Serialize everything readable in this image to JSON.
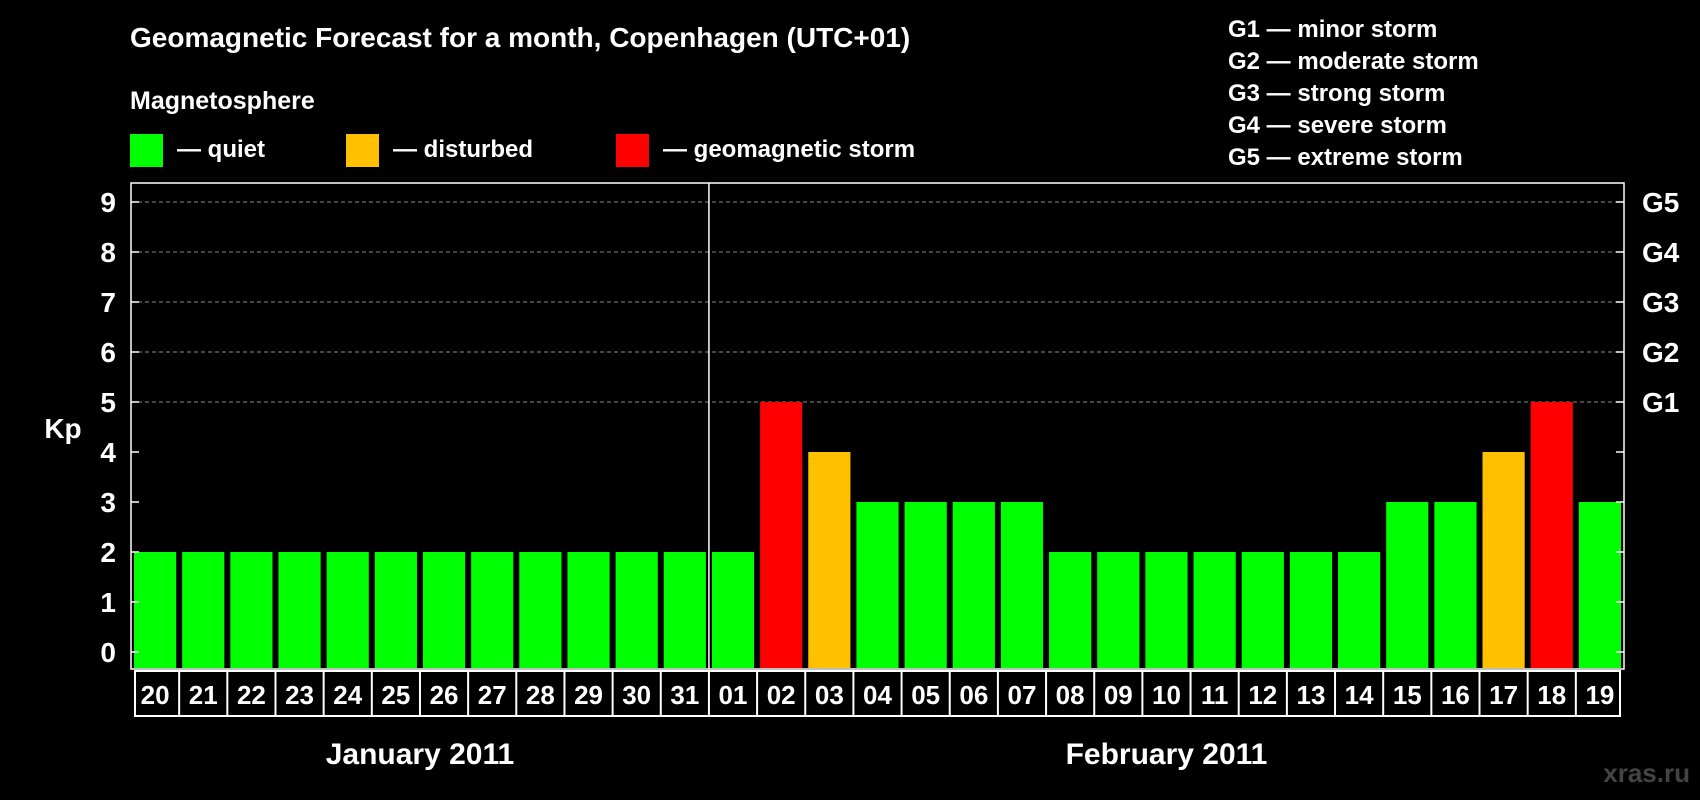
{
  "chart_data": {
    "type": "bar",
    "title": "Geomagnetic Forecast for a month, Copenhagen (UTC+01)",
    "legend_title": "Magnetosphere",
    "legend": [
      {
        "label": "— quiet",
        "color": "#00ff00"
      },
      {
        "label": "— disturbed",
        "color": "#ffc000"
      },
      {
        "label": "— geomagnetic storm",
        "color": "#ff0000"
      }
    ],
    "storm_scale": [
      "G1 — minor storm",
      "G2 — moderate storm",
      "G3 — strong storm",
      "G4 — severe storm",
      "G5 — extreme storm"
    ],
    "ylabel": "Kp",
    "ylim": [
      0,
      9
    ],
    "yticks": [
      "0",
      "1",
      "2",
      "3",
      "4",
      "5",
      "6",
      "7",
      "8",
      "9"
    ],
    "right_ticks": [
      {
        "kp": 5,
        "label": "G1"
      },
      {
        "kp": 6,
        "label": "G2"
      },
      {
        "kp": 7,
        "label": "G3"
      },
      {
        "kp": 8,
        "label": "G4"
      },
      {
        "kp": 9,
        "label": "G5"
      }
    ],
    "categories": [
      "20",
      "21",
      "22",
      "23",
      "24",
      "25",
      "26",
      "27",
      "28",
      "29",
      "30",
      "31",
      "01",
      "02",
      "03",
      "04",
      "05",
      "06",
      "07",
      "08",
      "09",
      "10",
      "11",
      "12",
      "13",
      "14",
      "15",
      "16",
      "17",
      "18",
      "19"
    ],
    "values": [
      2,
      2,
      2,
      2,
      2,
      2,
      2,
      2,
      2,
      2,
      2,
      2,
      2,
      5,
      4,
      3,
      3,
      3,
      3,
      2,
      2,
      2,
      2,
      2,
      2,
      2,
      3,
      3,
      4,
      5,
      3
    ],
    "months": [
      {
        "label": "January 2011",
        "start": 0,
        "count": 12
      },
      {
        "label": "February 2011",
        "start": 12,
        "count": 19
      }
    ],
    "thresholds": {
      "disturbed": 4,
      "storm": 5
    },
    "colors": {
      "quiet": "#00ff00",
      "disturbed": "#ffc000",
      "storm": "#ff0000",
      "background": "#000000",
      "foreground": "#ffffff",
      "grid": "#888888"
    },
    "watermark": "xras.ru"
  }
}
